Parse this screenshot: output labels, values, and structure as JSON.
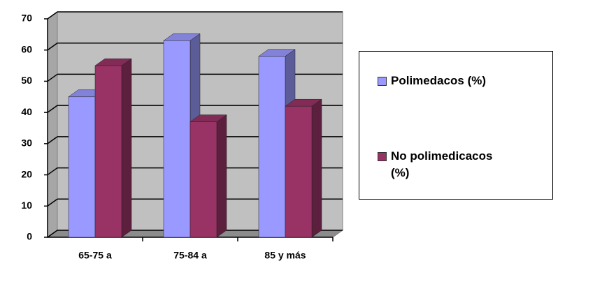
{
  "chart_data": {
    "type": "bar3d",
    "categories": [
      "65-75 a",
      "75-84 a",
      "85 y más"
    ],
    "series": [
      {
        "name": "Polimedacos (%)",
        "color": "#9999ff",
        "values": [
          45,
          63,
          58
        ]
      },
      {
        "name": "No polimedicacos (%)",
        "color": "#993366",
        "values": [
          55,
          37,
          42
        ]
      }
    ],
    "ylim": [
      0,
      70
    ],
    "yticks": [
      0,
      10,
      20,
      30,
      40,
      50,
      60,
      70
    ],
    "grid": true,
    "legend": "right"
  }
}
